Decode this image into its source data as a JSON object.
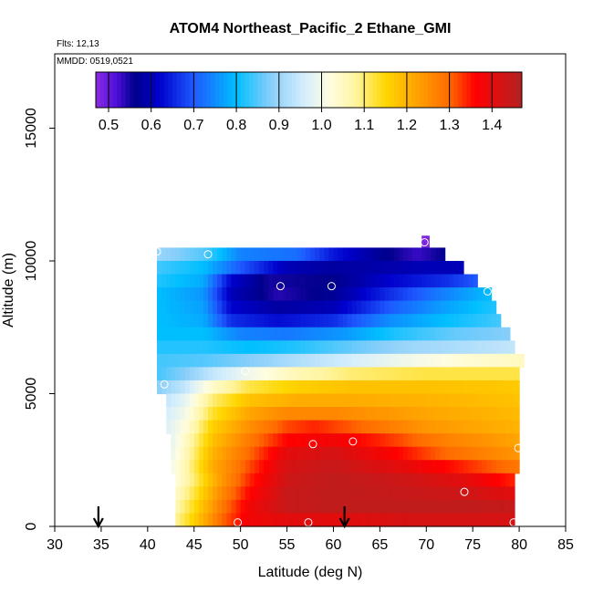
{
  "chart_data": {
    "type": "heatmap",
    "title": "ATOM4 Northeast_Pacific_2 Ethane_GMI",
    "annotations": [
      "Flts: 12,13",
      "MMDD: 0519,0521"
    ],
    "xlabel": "Latitude (deg N)",
    "ylabel": "Altitude (m)",
    "xlim": [
      30,
      85
    ],
    "ylim": [
      0,
      17800
    ],
    "xticks": [
      30,
      35,
      40,
      45,
      50,
      55,
      60,
      65,
      70,
      75,
      80,
      85
    ],
    "yticks": [
      0,
      5000,
      10000,
      15000
    ],
    "grid": false,
    "colorbar": {
      "placement": "top",
      "range": [
        0.47,
        1.47
      ],
      "ticks": [
        0.5,
        0.6,
        0.7,
        0.8,
        0.9,
        1.0,
        1.1,
        1.2,
        1.3,
        1.4
      ],
      "tick_labels": [
        "0.5",
        "0.6",
        "0.7",
        "0.8",
        "0.9",
        "1.0",
        "1.1",
        "1.2",
        "1.3",
        "1.4"
      ],
      "stops": [
        {
          "value": 0.47,
          "color": "#8a2be2"
        },
        {
          "value": 0.52,
          "color": "#4b0fd8"
        },
        {
          "value": 0.56,
          "color": "#00008b"
        },
        {
          "value": 0.62,
          "color": "#0000cd"
        },
        {
          "value": 0.7,
          "color": "#1e5aff"
        },
        {
          "value": 0.8,
          "color": "#00bfff"
        },
        {
          "value": 0.88,
          "color": "#87cefa"
        },
        {
          "value": 0.96,
          "color": "#d6eefc"
        },
        {
          "value": 1.02,
          "color": "#fffde0"
        },
        {
          "value": 1.08,
          "color": "#fff5a0"
        },
        {
          "value": 1.15,
          "color": "#ffd700"
        },
        {
          "value": 1.22,
          "color": "#ffa500"
        },
        {
          "value": 1.3,
          "color": "#ff6a00"
        },
        {
          "value": 1.36,
          "color": "#ff0000"
        },
        {
          "value": 1.47,
          "color": "#b22222"
        }
      ]
    },
    "profile_rows": [
      {
        "alt": 10700,
        "lat_start": 69.5,
        "lat_end": 70.3,
        "anchors": [
          [
            69.5,
            0.48
          ],
          [
            70.3,
            0.48
          ]
        ]
      },
      {
        "alt": 10250,
        "lat_start": 41.0,
        "lat_end": 72.0,
        "anchors": [
          [
            41,
            0.9
          ],
          [
            46,
            0.85
          ],
          [
            50,
            0.74
          ],
          [
            56,
            0.72
          ],
          [
            60,
            0.64
          ],
          [
            65,
            0.57
          ],
          [
            69,
            0.53
          ],
          [
            72,
            0.56
          ]
        ]
      },
      {
        "alt": 9750,
        "lat_start": 41.0,
        "lat_end": 74.0,
        "anchors": [
          [
            41,
            0.84
          ],
          [
            46,
            0.8
          ],
          [
            50,
            0.7
          ],
          [
            55,
            0.6
          ],
          [
            60,
            0.58
          ],
          [
            66,
            0.59
          ],
          [
            70,
            0.6
          ],
          [
            74,
            0.6
          ]
        ]
      },
      {
        "alt": 9250,
        "lat_start": 41.0,
        "lat_end": 75.5,
        "anchors": [
          [
            41,
            0.82
          ],
          [
            46,
            0.78
          ],
          [
            49,
            0.62
          ],
          [
            53,
            0.55
          ],
          [
            60,
            0.56
          ],
          [
            66,
            0.62
          ],
          [
            72,
            0.66
          ],
          [
            75.5,
            0.7
          ]
        ]
      },
      {
        "alt": 8750,
        "lat_start": 41.0,
        "lat_end": 77.0,
        "anchors": [
          [
            41,
            0.8
          ],
          [
            46,
            0.76
          ],
          [
            49,
            0.6
          ],
          [
            54,
            0.54
          ],
          [
            60,
            0.57
          ],
          [
            66,
            0.66
          ],
          [
            72,
            0.74
          ],
          [
            77,
            0.8
          ]
        ]
      },
      {
        "alt": 8250,
        "lat_start": 41.0,
        "lat_end": 77.5,
        "anchors": [
          [
            41,
            0.8
          ],
          [
            46,
            0.77
          ],
          [
            49,
            0.62
          ],
          [
            54,
            0.58
          ],
          [
            60,
            0.6
          ],
          [
            66,
            0.7
          ],
          [
            72,
            0.77
          ],
          [
            77.5,
            0.82
          ]
        ]
      },
      {
        "alt": 7750,
        "lat_start": 41.0,
        "lat_end": 78.0,
        "anchors": [
          [
            41,
            0.8
          ],
          [
            46,
            0.78
          ],
          [
            49,
            0.66
          ],
          [
            54,
            0.63
          ],
          [
            60,
            0.66
          ],
          [
            66,
            0.75
          ],
          [
            72,
            0.8
          ],
          [
            78,
            0.84
          ]
        ]
      },
      {
        "alt": 7250,
        "lat_start": 41.0,
        "lat_end": 79.0,
        "anchors": [
          [
            41,
            0.8
          ],
          [
            46,
            0.8
          ],
          [
            50,
            0.74
          ],
          [
            55,
            0.73
          ],
          [
            61,
            0.76
          ],
          [
            67,
            0.82
          ],
          [
            73,
            0.86
          ],
          [
            79,
            0.88
          ]
        ]
      },
      {
        "alt": 6750,
        "lat_start": 41.0,
        "lat_end": 79.5,
        "anchors": [
          [
            41,
            0.82
          ],
          [
            46,
            0.82
          ],
          [
            51,
            0.8
          ],
          [
            56,
            0.82
          ],
          [
            62,
            0.86
          ],
          [
            68,
            0.9
          ],
          [
            74,
            0.92
          ],
          [
            79.5,
            0.94
          ]
        ]
      },
      {
        "alt": 6250,
        "lat_start": 41.0,
        "lat_end": 80.5,
        "anchors": [
          [
            41,
            0.84
          ],
          [
            46,
            0.85
          ],
          [
            51,
            0.88
          ],
          [
            56,
            0.92
          ],
          [
            62,
            0.96
          ],
          [
            68,
            1.0
          ],
          [
            74,
            1.03
          ],
          [
            80.5,
            1.05
          ]
        ]
      },
      {
        "alt": 5750,
        "lat_start": 41.0,
        "lat_end": 80.0,
        "anchors": [
          [
            41,
            0.84
          ],
          [
            44,
            0.88
          ],
          [
            47,
            0.94
          ],
          [
            51,
            1.0
          ],
          [
            56,
            1.06
          ],
          [
            62,
            1.1
          ],
          [
            70,
            1.12
          ],
          [
            80,
            1.12
          ]
        ]
      },
      {
        "alt": 5250,
        "lat_start": 41.0,
        "lat_end": 80.0,
        "anchors": [
          [
            41,
            0.88
          ],
          [
            44,
            0.94
          ],
          [
            47,
            1.04
          ],
          [
            51,
            1.12
          ],
          [
            56,
            1.16
          ],
          [
            62,
            1.18
          ],
          [
            70,
            1.18
          ],
          [
            80,
            1.17
          ]
        ]
      },
      {
        "alt": 4750,
        "lat_start": 42.0,
        "lat_end": 80.0,
        "anchors": [
          [
            42,
            0.94
          ],
          [
            44,
            0.98
          ],
          [
            47,
            1.1
          ],
          [
            51,
            1.18
          ],
          [
            56,
            1.21
          ],
          [
            62,
            1.21
          ],
          [
            70,
            1.2
          ],
          [
            80,
            1.18
          ]
        ]
      },
      {
        "alt": 4250,
        "lat_start": 42.0,
        "lat_end": 80.0,
        "anchors": [
          [
            42,
            0.96
          ],
          [
            44,
            1.0
          ],
          [
            47,
            1.13
          ],
          [
            51,
            1.22
          ],
          [
            55,
            1.26
          ],
          [
            60,
            1.26
          ],
          [
            70,
            1.22
          ],
          [
            80,
            1.19
          ]
        ]
      },
      {
        "alt": 3750,
        "lat_start": 42.0,
        "lat_end": 80.0,
        "anchors": [
          [
            42,
            0.97
          ],
          [
            44,
            1.02
          ],
          [
            47,
            1.16
          ],
          [
            51,
            1.25
          ],
          [
            55,
            1.32
          ],
          [
            58,
            1.34
          ],
          [
            63,
            1.3
          ],
          [
            70,
            1.24
          ],
          [
            80,
            1.2
          ]
        ]
      },
      {
        "alt": 3250,
        "lat_start": 42.5,
        "lat_end": 80.0,
        "anchors": [
          [
            42.5,
            0.98
          ],
          [
            44,
            1.04
          ],
          [
            47,
            1.18
          ],
          [
            51,
            1.28
          ],
          [
            55,
            1.36
          ],
          [
            60,
            1.38
          ],
          [
            65,
            1.34
          ],
          [
            72,
            1.27
          ],
          [
            80,
            1.22
          ]
        ]
      },
      {
        "alt": 2750,
        "lat_start": 42.5,
        "lat_end": 80.0,
        "anchors": [
          [
            42.5,
            0.99
          ],
          [
            44,
            1.05
          ],
          [
            47,
            1.2
          ],
          [
            51,
            1.3
          ],
          [
            55,
            1.4
          ],
          [
            60,
            1.42
          ],
          [
            66,
            1.37
          ],
          [
            72,
            1.3
          ],
          [
            80,
            1.24
          ]
        ]
      },
      {
        "alt": 2250,
        "lat_start": 42.5,
        "lat_end": 80.0,
        "anchors": [
          [
            42.5,
            1.0
          ],
          [
            44,
            1.06
          ],
          [
            47,
            1.21
          ],
          [
            51,
            1.32
          ],
          [
            55,
            1.42
          ],
          [
            60,
            1.44
          ],
          [
            67,
            1.4
          ],
          [
            73,
            1.35
          ],
          [
            80,
            1.28
          ]
        ]
      },
      {
        "alt": 1750,
        "lat_start": 43.0,
        "lat_end": 79.5,
        "anchors": [
          [
            43,
            1.02
          ],
          [
            45,
            1.1
          ],
          [
            48,
            1.24
          ],
          [
            51,
            1.34
          ],
          [
            55,
            1.43
          ],
          [
            60,
            1.45
          ],
          [
            68,
            1.43
          ],
          [
            74,
            1.4
          ],
          [
            79.5,
            1.34
          ]
        ]
      },
      {
        "alt": 1250,
        "lat_start": 43.0,
        "lat_end": 79.5,
        "anchors": [
          [
            43,
            1.04
          ],
          [
            45,
            1.12
          ],
          [
            48,
            1.26
          ],
          [
            51,
            1.36
          ],
          [
            55,
            1.44
          ],
          [
            60,
            1.45
          ],
          [
            68,
            1.44
          ],
          [
            74,
            1.43
          ],
          [
            79.5,
            1.4
          ]
        ]
      },
      {
        "alt": 750,
        "lat_start": 43.0,
        "lat_end": 79.5,
        "anchors": [
          [
            43,
            1.06
          ],
          [
            45,
            1.14
          ],
          [
            48,
            1.28
          ],
          [
            51,
            1.38
          ],
          [
            55,
            1.44
          ],
          [
            60,
            1.45
          ],
          [
            68,
            1.45
          ],
          [
            74,
            1.45
          ],
          [
            79.5,
            1.44
          ]
        ]
      },
      {
        "alt": 250,
        "lat_start": 43.0,
        "lat_end": 79.5,
        "anchors": [
          [
            43,
            1.08
          ],
          [
            45,
            1.16
          ],
          [
            48,
            1.3
          ],
          [
            51,
            1.38
          ],
          [
            55,
            1.4
          ],
          [
            60,
            1.4
          ],
          [
            68,
            1.42
          ],
          [
            74,
            1.42
          ],
          [
            79.5,
            1.42
          ]
        ]
      }
    ],
    "sample_points": [
      {
        "lat": 41.0,
        "alt": 10350
      },
      {
        "lat": 46.5,
        "alt": 10250
      },
      {
        "lat": 69.8,
        "alt": 10700
      },
      {
        "lat": 54.3,
        "alt": 9050
      },
      {
        "lat": 59.8,
        "alt": 9050
      },
      {
        "lat": 76.6,
        "alt": 8850
      },
      {
        "lat": 41.8,
        "alt": 5350
      },
      {
        "lat": 50.5,
        "alt": 5850
      },
      {
        "lat": 57.8,
        "alt": 3100
      },
      {
        "lat": 62.1,
        "alt": 3200
      },
      {
        "lat": 79.9,
        "alt": 2950
      },
      {
        "lat": 74.1,
        "alt": 1300
      },
      {
        "lat": 49.7,
        "alt": 150
      },
      {
        "lat": 57.3,
        "alt": 150
      },
      {
        "lat": 79.4,
        "alt": 150
      }
    ],
    "arrows": [
      {
        "lat": 34.7
      },
      {
        "lat": 61.2
      }
    ]
  }
}
